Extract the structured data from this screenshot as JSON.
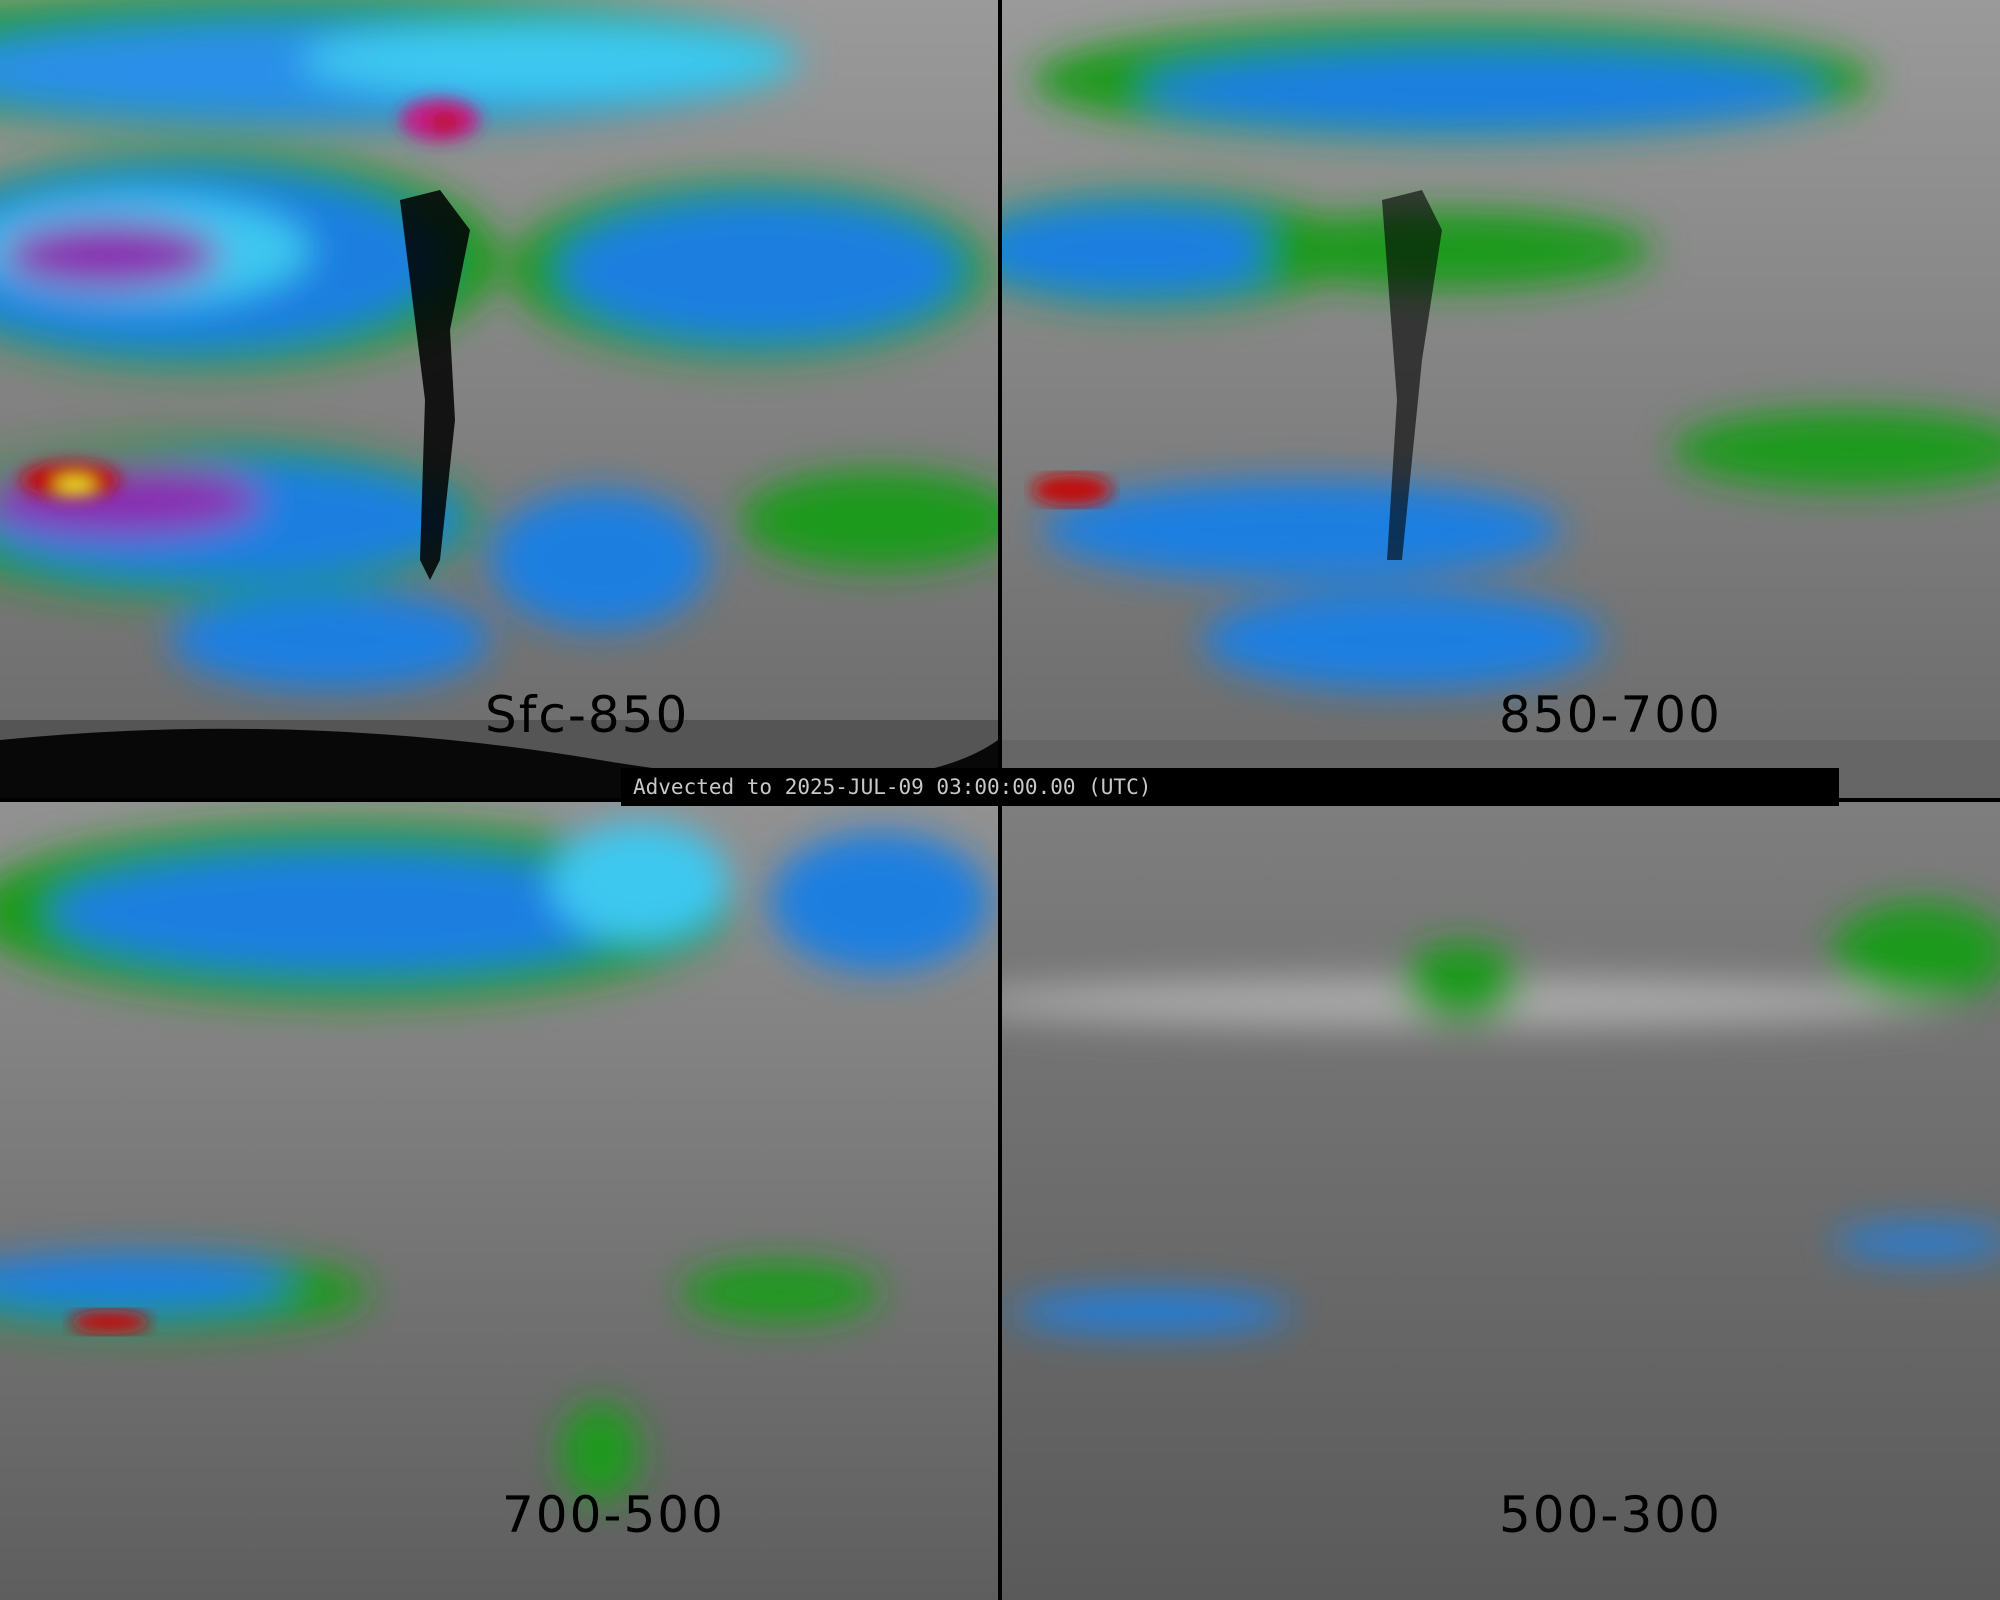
{
  "panels": [
    {
      "label": "Sfc-850"
    },
    {
      "label": "850-700"
    },
    {
      "label": "700-500"
    },
    {
      "label": "500-300"
    }
  ],
  "banner": {
    "text": "Advected to 2025-JUL-09 03:00:00.00 (UTC)"
  },
  "colors": {
    "background_gray": "#8a8a8a",
    "green": "#1a9a1a",
    "blue": "#1e7fe0",
    "cyan": "#3cc8f0",
    "purple": "#8a2ab0",
    "magenta": "#c0208a",
    "red": "#c01010",
    "yellow": "#f0e020",
    "land_mask": "#000000"
  }
}
